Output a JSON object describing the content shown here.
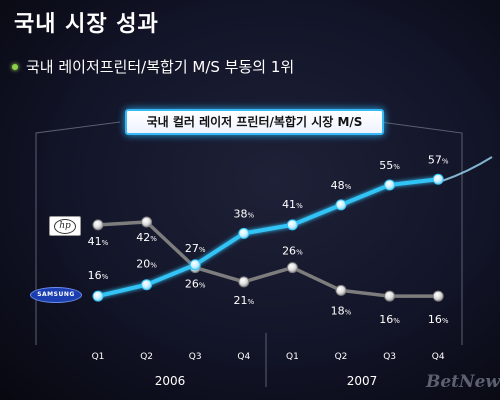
{
  "page": {
    "title": "국내 시장 성과",
    "subtitle": "국내 레이저프린터/복합기 M/S 부동의 1위",
    "watermark": "BetNews"
  },
  "legend": {
    "hp_logo": "hp",
    "samsung_logo": "SAMSUNG"
  },
  "colors": {
    "samsung": "#33c4f7",
    "hp": "#7d7d7d"
  },
  "chart_data": {
    "type": "line",
    "title": "국내 컬러 레이저 프린터/복합기 시장 M/S",
    "categories": [
      "Q1",
      "Q2",
      "Q3",
      "Q4",
      "Q1",
      "Q2",
      "Q3",
      "Q4"
    ],
    "year_labels": [
      "2006",
      "2007"
    ],
    "unit": "%",
    "series": [
      {
        "name": "SAMSUNG",
        "values": [
          16,
          20,
          27,
          38,
          41,
          48,
          55,
          57
        ]
      },
      {
        "name": "hp",
        "values": [
          41,
          42,
          26,
          21,
          26,
          18,
          16,
          16
        ]
      }
    ],
    "legend": "left, logos"
  }
}
